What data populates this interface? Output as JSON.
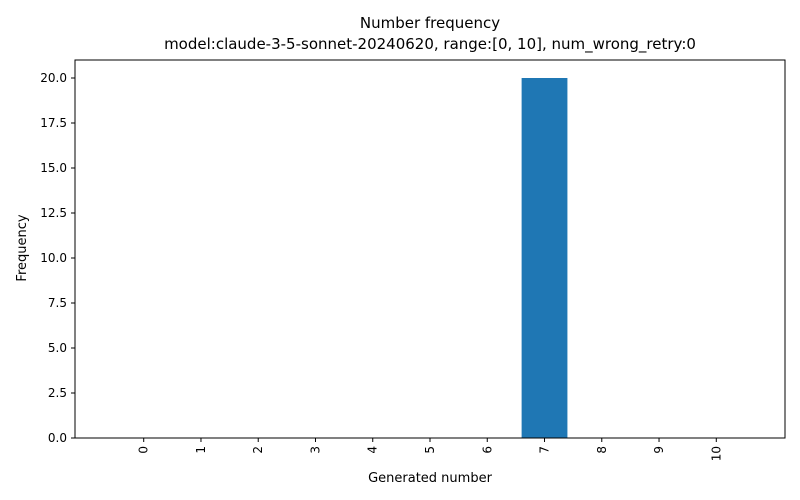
{
  "chart_data": {
    "type": "bar",
    "title": "Number frequency",
    "subtitle": "model:claude-3-5-sonnet-20240620, range:[0, 10], num_wrong_retry:0",
    "xlabel": "Generated number",
    "ylabel": "Frequency",
    "categories": [
      "0",
      "1",
      "2",
      "3",
      "4",
      "5",
      "6",
      "7",
      "8",
      "9",
      "10"
    ],
    "values": [
      0,
      0,
      0,
      0,
      0,
      0,
      0,
      20,
      0,
      0,
      0
    ],
    "ylim": [
      0,
      21
    ],
    "yticks": [
      0.0,
      2.5,
      5.0,
      7.5,
      10.0,
      12.5,
      15.0,
      17.5,
      20.0
    ],
    "ytick_labels": [
      "0.0",
      "2.5",
      "5.0",
      "7.5",
      "10.0",
      "12.5",
      "15.0",
      "17.5",
      "20.0"
    ],
    "bar_color": "#1f77b4",
    "grid": false,
    "legend": "none"
  }
}
